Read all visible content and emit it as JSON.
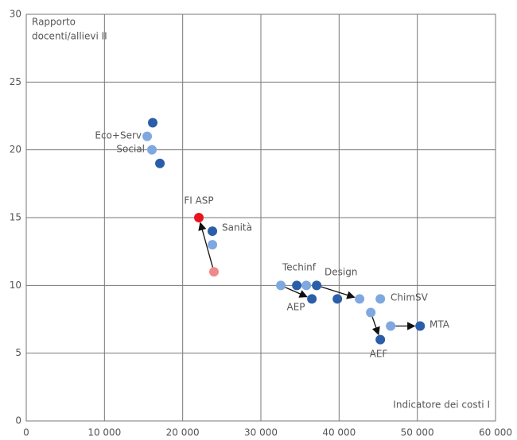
{
  "chart_data": {
    "type": "scatter",
    "ylabel": [
      "Rapporto",
      "docenti/allievi II"
    ],
    "xlabel": "Indicatore dei costi I",
    "xlim": [
      0,
      60000
    ],
    "xticks": [
      0,
      {
        "value": 10000,
        "label": "10 000"
      },
      {
        "value": 20000,
        "label": "20 000"
      },
      {
        "value": 30000,
        "label": "30 000"
      },
      {
        "value": 40000,
        "label": "40 000"
      },
      {
        "value": 50000,
        "label": "50 000"
      },
      {
        "value": 60000,
        "label": "60 000"
      }
    ],
    "ylim": [
      0,
      30
    ],
    "yticks": [
      0,
      5,
      10,
      15,
      20,
      25,
      30
    ],
    "grid": true,
    "series": [
      {
        "color": "#2a5ea8",
        "x": [
          16170,
          17090,
          23800,
          34590,
          37130,
          36520,
          39780,
          45270,
          50360
        ],
        "y": [
          22,
          19,
          14,
          10,
          10,
          9,
          9,
          6,
          7
        ]
      },
      {
        "color": "#7fa8e0",
        "x": [
          15460,
          16070,
          23800,
          32550,
          35810,
          42620,
          45270,
          44050,
          46590
        ],
        "y": [
          21,
          20,
          13,
          10,
          10,
          9,
          9,
          8,
          7
        ]
      },
      {
        "color": "#e8141e",
        "x": [
          22070
        ],
        "y": [
          15
        ]
      },
      {
        "color": "#f08a8a",
        "x": [
          24000
        ],
        "y": [
          11
        ]
      }
    ],
    "annotations": [
      "Eco+Serv",
      "Social",
      "FI ASP",
      "Sanità",
      "Techinf",
      "Design",
      "AEP",
      "ChimSV",
      "MTA",
      "AEF"
    ]
  }
}
